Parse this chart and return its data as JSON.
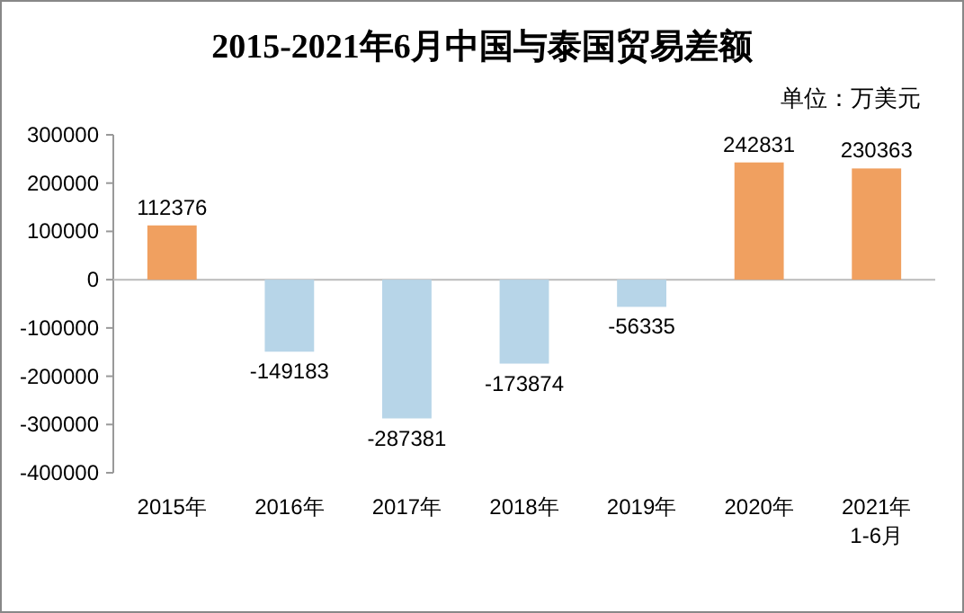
{
  "chart_data": {
    "type": "bar",
    "title": "2015-2021年6月中国与泰国贸易差额",
    "subtitle": "单位：万美元",
    "categories": [
      "2015年",
      "2016年",
      "2017年",
      "2018年",
      "2019年",
      "2020年",
      "2021年1-6月"
    ],
    "values": [
      112376,
      -149183,
      -287381,
      -173874,
      -56335,
      242831,
      230363
    ],
    "colors": [
      "#f0a060",
      "#b7d5e8",
      "#b7d5e8",
      "#b7d5e8",
      "#b7d5e8",
      "#f0a060",
      "#f0a060"
    ],
    "ylim": [
      -400000,
      300000
    ],
    "yticks": [
      -400000,
      -300000,
      -200000,
      -100000,
      0,
      100000,
      200000,
      300000
    ],
    "data_labels": true
  }
}
